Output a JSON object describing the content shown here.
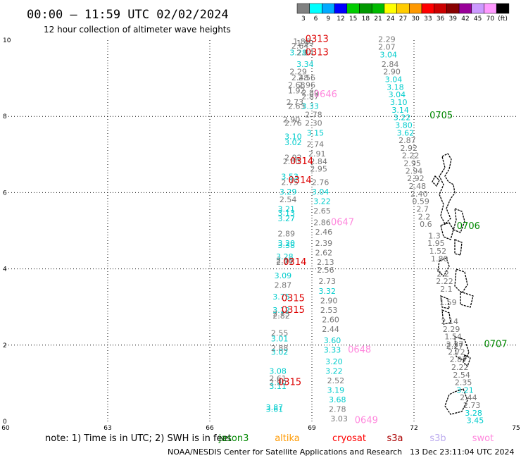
{
  "header": {
    "title": "00:00 – 11:59 UTC 02/02/2024",
    "subtitle": "12 hour collection of altimeter wave heights"
  },
  "colorbar": {
    "labels": [
      "3",
      "6",
      "9",
      "12",
      "15",
      "18",
      "21",
      "24",
      "27",
      "30",
      "33",
      "36",
      "39",
      "42",
      "45",
      "70",
      "(ft)"
    ],
    "colors": [
      "#808080",
      "#00ffff",
      "#00aaff",
      "#0000ff",
      "#00cc00",
      "#009900",
      "#00bb00",
      "#ffff00",
      "#ffcc00",
      "#ff9900",
      "#ff0000",
      "#cc0000",
      "#880000",
      "#990099",
      "#cc99ff",
      "#ff99ff",
      "#000000"
    ]
  },
  "footer": {
    "note": "note:  1) Time is in UTC; 2) SWH is in feet",
    "credit": "NOAA/NESDIS Center for Satellite Applications and Research",
    "timestamp": "13 Dec 23:11:04 UTC 2024",
    "satellites": [
      {
        "name": "jason3",
        "color": "#008800"
      },
      {
        "name": "altika",
        "color": "#ff9900"
      },
      {
        "name": "cryosat",
        "color": "#ff0000"
      },
      {
        "name": "s3a",
        "color": "#aa0000"
      },
      {
        "name": "s3b",
        "color": "#bbaaee"
      },
      {
        "name": "swot",
        "color": "#ff88dd"
      }
    ]
  },
  "chart_data": {
    "type": "scatter",
    "title": "00:00 – 11:59 UTC 02/02/2024",
    "subtitle": "12 hour collection of altimeter wave heights",
    "xlim": [
      60,
      75
    ],
    "ylim": [
      0,
      10
    ],
    "x_ticks": [
      60,
      63,
      66,
      69,
      72,
      75
    ],
    "x_tick_labels": [
      "60",
      "63",
      "66",
      "69",
      "72",
      "75"
    ],
    "y_ticks": [
      0,
      2,
      4,
      6,
      8,
      10
    ],
    "y_tick_labels": [
      "0",
      "2",
      "4",
      "6",
      "8",
      "10"
    ],
    "grid": true,
    "points": [
      {
        "x": 68.7,
        "y": 9.9,
        "v": "1.86",
        "c": "#777777"
      },
      {
        "x": 68.8,
        "y": 9.85,
        "v": "1.99",
        "c": "#777777"
      },
      {
        "x": 68.65,
        "y": 9.78,
        "v": "2.64",
        "c": "#777777"
      },
      {
        "x": 68.6,
        "y": 9.6,
        "v": "3.28",
        "c": "#00cccc"
      },
      {
        "x": 68.8,
        "y": 9.6,
        "v": "2.84",
        "c": "#777777"
      },
      {
        "x": 68.8,
        "y": 9.3,
        "v": "3.34",
        "c": "#00cccc"
      },
      {
        "x": 68.6,
        "y": 9.1,
        "v": "2.29",
        "c": "#777777"
      },
      {
        "x": 68.65,
        "y": 8.95,
        "v": "2.48",
        "c": "#777777"
      },
      {
        "x": 68.85,
        "y": 8.95,
        "v": "2.56",
        "c": "#777777"
      },
      {
        "x": 68.55,
        "y": 8.75,
        "v": "2.68",
        "c": "#777777"
      },
      {
        "x": 68.85,
        "y": 8.75,
        "v": "2.96",
        "c": "#777777"
      },
      {
        "x": 68.55,
        "y": 8.6,
        "v": "1.92",
        "c": "#777777"
      },
      {
        "x": 68.95,
        "y": 8.55,
        "v": "2.89",
        "c": "#777777"
      },
      {
        "x": 68.95,
        "y": 8.45,
        "v": "2.87",
        "c": "#777777"
      },
      {
        "x": 68.5,
        "y": 8.3,
        "v": "2.73",
        "c": "#777777"
      },
      {
        "x": 68.55,
        "y": 8.2,
        "v": "2.63",
        "c": "#777777"
      },
      {
        "x": 68.95,
        "y": 8.2,
        "v": "3.33",
        "c": "#00cccc"
      },
      {
        "x": 69.05,
        "y": 7.98,
        "v": "2.78",
        "c": "#777777"
      },
      {
        "x": 68.4,
        "y": 7.85,
        "v": "2.90",
        "c": "#777777"
      },
      {
        "x": 68.45,
        "y": 7.75,
        "v": "2.76",
        "c": "#777777"
      },
      {
        "x": 69.05,
        "y": 7.75,
        "v": "2.30",
        "c": "#777777"
      },
      {
        "x": 69.1,
        "y": 7.5,
        "v": "3.15",
        "c": "#00cccc"
      },
      {
        "x": 68.45,
        "y": 7.4,
        "v": "3.10",
        "c": "#00cccc"
      },
      {
        "x": 68.45,
        "y": 7.25,
        "v": "3.02",
        "c": "#00cccc"
      },
      {
        "x": 69.1,
        "y": 7.2,
        "v": "2.74",
        "c": "#777777"
      },
      {
        "x": 69.15,
        "y": 6.95,
        "v": "2.91",
        "c": "#777777"
      },
      {
        "x": 68.45,
        "y": 6.85,
        "v": "2.92",
        "c": "#777777"
      },
      {
        "x": 68.4,
        "y": 6.75,
        "v": "2.60",
        "c": "#777777"
      },
      {
        "x": 69.2,
        "y": 6.75,
        "v": "2.84",
        "c": "#777777"
      },
      {
        "x": 69.2,
        "y": 6.55,
        "v": "2.95",
        "c": "#777777"
      },
      {
        "x": 68.35,
        "y": 6.35,
        "v": "3.53",
        "c": "#00cccc"
      },
      {
        "x": 68.35,
        "y": 6.2,
        "v": "2.75",
        "c": "#777777"
      },
      {
        "x": 69.25,
        "y": 6.2,
        "v": "2.76",
        "c": "#777777"
      },
      {
        "x": 69.25,
        "y": 5.95,
        "v": "3.04",
        "c": "#00cccc"
      },
      {
        "x": 68.3,
        "y": 5.95,
        "v": "3.29",
        "c": "#00cccc"
      },
      {
        "x": 68.3,
        "y": 5.75,
        "v": "2.54",
        "c": "#777777"
      },
      {
        "x": 69.3,
        "y": 5.7,
        "v": "3.22",
        "c": "#00cccc"
      },
      {
        "x": 68.25,
        "y": 5.5,
        "v": "3.21",
        "c": "#00cccc"
      },
      {
        "x": 68.25,
        "y": 5.4,
        "v": "3.13",
        "c": "#00cccc"
      },
      {
        "x": 69.3,
        "y": 5.45,
        "v": "2.65",
        "c": "#777777"
      },
      {
        "x": 68.25,
        "y": 5.25,
        "v": "3.27",
        "c": "#00cccc"
      },
      {
        "x": 69.3,
        "y": 5.15,
        "v": "2.86",
        "c": "#777777"
      },
      {
        "x": 68.25,
        "y": 4.85,
        "v": "2.89",
        "c": "#777777"
      },
      {
        "x": 69.35,
        "y": 4.9,
        "v": "2.46",
        "c": "#777777"
      },
      {
        "x": 68.25,
        "y": 4.6,
        "v": "3.20",
        "c": "#00cccc"
      },
      {
        "x": 68.25,
        "y": 4.55,
        "v": "3.38",
        "c": "#00cccc"
      },
      {
        "x": 69.35,
        "y": 4.6,
        "v": "2.39",
        "c": "#777777"
      },
      {
        "x": 69.35,
        "y": 4.35,
        "v": "2.62",
        "c": "#777777"
      },
      {
        "x": 68.2,
        "y": 4.25,
        "v": "3.28",
        "c": "#00cccc"
      },
      {
        "x": 68.2,
        "y": 4.15,
        "v": "2.90",
        "c": "#777777"
      },
      {
        "x": 68.2,
        "y": 4.1,
        "v": "2.71",
        "c": "#777777"
      },
      {
        "x": 69.4,
        "y": 4.1,
        "v": "2.13",
        "c": "#777777"
      },
      {
        "x": 69.4,
        "y": 3.9,
        "v": "2.56",
        "c": "#777777"
      },
      {
        "x": 68.15,
        "y": 3.75,
        "v": "3.09",
        "c": "#00cccc"
      },
      {
        "x": 69.45,
        "y": 3.6,
        "v": "2.73",
        "c": "#777777"
      },
      {
        "x": 68.15,
        "y": 3.5,
        "v": "2.87",
        "c": "#777777"
      },
      {
        "x": 69.45,
        "y": 3.35,
        "v": "3.32",
        "c": "#00cccc"
      },
      {
        "x": 68.1,
        "y": 3.2,
        "v": "3.75",
        "c": "#00cccc"
      },
      {
        "x": 69.5,
        "y": 3.1,
        "v": "2.90",
        "c": "#777777"
      },
      {
        "x": 68.1,
        "y": 2.85,
        "v": "3.12",
        "c": "#00cccc"
      },
      {
        "x": 68.1,
        "y": 2.75,
        "v": "2.75",
        "c": "#777777"
      },
      {
        "x": 68.1,
        "y": 2.7,
        "v": "2.82",
        "c": "#777777"
      },
      {
        "x": 69.5,
        "y": 2.85,
        "v": "2.53",
        "c": "#777777"
      },
      {
        "x": 69.55,
        "y": 2.6,
        "v": "2.60",
        "c": "#777777"
      },
      {
        "x": 69.55,
        "y": 2.35,
        "v": "2.44",
        "c": "#777777"
      },
      {
        "x": 68.05,
        "y": 2.25,
        "v": "2.55",
        "c": "#777777"
      },
      {
        "x": 68.05,
        "y": 2.1,
        "v": "3.01",
        "c": "#00cccc"
      },
      {
        "x": 69.6,
        "y": 2.05,
        "v": "3.60",
        "c": "#00cccc"
      },
      {
        "x": 68.05,
        "y": 1.85,
        "v": "2.88",
        "c": "#777777"
      },
      {
        "x": 68.05,
        "y": 1.75,
        "v": "3.02",
        "c": "#00cccc"
      },
      {
        "x": 69.6,
        "y": 1.8,
        "v": "3.33",
        "c": "#00cccc"
      },
      {
        "x": 69.65,
        "y": 1.5,
        "v": "3.20",
        "c": "#00cccc"
      },
      {
        "x": 68.0,
        "y": 1.25,
        "v": "3.08",
        "c": "#00cccc"
      },
      {
        "x": 69.65,
        "y": 1.25,
        "v": "3.22",
        "c": "#00cccc"
      },
      {
        "x": 68.0,
        "y": 1.05,
        "v": "2.61",
        "c": "#777777"
      },
      {
        "x": 69.7,
        "y": 1.0,
        "v": "2.52",
        "c": "#777777"
      },
      {
        "x": 68.0,
        "y": 0.95,
        "v": "2.90",
        "c": "#777777"
      },
      {
        "x": 68.0,
        "y": 0.85,
        "v": "3.11",
        "c": "#00cccc"
      },
      {
        "x": 69.7,
        "y": 0.75,
        "v": "3.19",
        "c": "#00cccc"
      },
      {
        "x": 69.75,
        "y": 0.5,
        "v": "3.68",
        "c": "#00cccc"
      },
      {
        "x": 69.75,
        "y": 0.25,
        "v": "2.78",
        "c": "#777777"
      },
      {
        "x": 67.9,
        "y": 0.3,
        "v": "3.87",
        "c": "#00cccc"
      },
      {
        "x": 67.9,
        "y": 0.25,
        "v": "3.61",
        "c": "#00cccc"
      },
      {
        "x": 69.8,
        "y": 0.0,
        "v": "3.03",
        "c": "#777777"
      },
      {
        "x": 71.2,
        "y": 9.95,
        "v": "2.29",
        "c": "#777777"
      },
      {
        "x": 71.2,
        "y": 9.75,
        "v": "2.07",
        "c": "#777777"
      },
      {
        "x": 71.25,
        "y": 9.55,
        "v": "3.04",
        "c": "#00cccc"
      },
      {
        "x": 71.3,
        "y": 9.3,
        "v": "2.84",
        "c": "#777777"
      },
      {
        "x": 71.35,
        "y": 9.1,
        "v": "2.90",
        "c": "#777777"
      },
      {
        "x": 71.4,
        "y": 8.9,
        "v": "3.04",
        "c": "#00cccc"
      },
      {
        "x": 71.45,
        "y": 8.7,
        "v": "3.18",
        "c": "#00cccc"
      },
      {
        "x": 71.5,
        "y": 8.5,
        "v": "3.04",
        "c": "#00cccc"
      },
      {
        "x": 71.55,
        "y": 8.3,
        "v": "3.10",
        "c": "#00cccc"
      },
      {
        "x": 71.6,
        "y": 8.1,
        "v": "3.14",
        "c": "#00cccc"
      },
      {
        "x": 71.65,
        "y": 7.9,
        "v": "3.22",
        "c": "#00cccc"
      },
      {
        "x": 71.7,
        "y": 7.7,
        "v": "3.80",
        "c": "#00cccc"
      },
      {
        "x": 71.75,
        "y": 7.5,
        "v": "3.62",
        "c": "#00cccc"
      },
      {
        "x": 71.8,
        "y": 7.3,
        "v": "2.87",
        "c": "#777777"
      },
      {
        "x": 71.85,
        "y": 7.1,
        "v": "2.92",
        "c": "#777777"
      },
      {
        "x": 71.9,
        "y": 6.9,
        "v": "2.22",
        "c": "#777777"
      },
      {
        "x": 71.95,
        "y": 6.7,
        "v": "2.95",
        "c": "#777777"
      },
      {
        "x": 72.0,
        "y": 6.5,
        "v": "2.94",
        "c": "#777777"
      },
      {
        "x": 72.05,
        "y": 6.3,
        "v": "2.92",
        "c": "#777777"
      },
      {
        "x": 72.1,
        "y": 6.1,
        "v": "2.48",
        "c": "#777777"
      },
      {
        "x": 72.15,
        "y": 5.9,
        "v": "2.40",
        "c": "#777777"
      },
      {
        "x": 72.2,
        "y": 5.7,
        "v": "0.59",
        "c": "#777777"
      },
      {
        "x": 72.25,
        "y": 5.5,
        "v": "2.7",
        "c": "#777777"
      },
      {
        "x": 72.3,
        "y": 5.3,
        "v": "2.2",
        "c": "#777777"
      },
      {
        "x": 72.35,
        "y": 5.1,
        "v": "0.6",
        "c": "#777777"
      },
      {
        "x": 72.6,
        "y": 4.8,
        "v": "1.3",
        "c": "#777777"
      },
      {
        "x": 72.65,
        "y": 4.6,
        "v": "1.95",
        "c": "#777777"
      },
      {
        "x": 72.7,
        "y": 4.4,
        "v": "1.52",
        "c": "#777777"
      },
      {
        "x": 72.75,
        "y": 4.2,
        "v": "1.80",
        "c": "#777777"
      },
      {
        "x": 72.85,
        "y": 3.8,
        "v": "2.2",
        "c": "#777777"
      },
      {
        "x": 72.9,
        "y": 3.6,
        "v": "2.22",
        "c": "#777777"
      },
      {
        "x": 72.95,
        "y": 3.4,
        "v": "2.1",
        "c": "#777777"
      },
      {
        "x": 73.0,
        "y": 3.05,
        "v": "1.59",
        "c": "#777777"
      },
      {
        "x": 73.05,
        "y": 2.55,
        "v": "2.14",
        "c": "#777777"
      },
      {
        "x": 73.1,
        "y": 2.35,
        "v": "2.29",
        "c": "#777777"
      },
      {
        "x": 73.15,
        "y": 2.15,
        "v": "1.54",
        "c": "#777777"
      },
      {
        "x": 73.2,
        "y": 1.95,
        "v": "2.37",
        "c": "#777777"
      },
      {
        "x": 73.2,
        "y": 1.9,
        "v": "2.27",
        "c": "#777777"
      },
      {
        "x": 73.25,
        "y": 1.75,
        "v": "2.72",
        "c": "#777777"
      },
      {
        "x": 73.3,
        "y": 1.55,
        "v": "2.87",
        "c": "#777777"
      },
      {
        "x": 73.35,
        "y": 1.35,
        "v": "2.22",
        "c": "#777777"
      },
      {
        "x": 73.4,
        "y": 1.15,
        "v": "2.54",
        "c": "#777777"
      },
      {
        "x": 73.45,
        "y": 0.95,
        "v": "2.35",
        "c": "#777777"
      },
      {
        "x": 73.5,
        "y": 0.75,
        "v": "3.21",
        "c": "#00cccc"
      },
      {
        "x": 73.6,
        "y": 0.55,
        "v": "2.44",
        "c": "#777777"
      },
      {
        "x": 73.7,
        "y": 0.35,
        "v": "2.73",
        "c": "#777777"
      },
      {
        "x": 73.75,
        "y": 0.15,
        "v": "3.28",
        "c": "#00cccc"
      },
      {
        "x": 73.8,
        "y": -0.05,
        "v": "3.45",
        "c": "#00cccc"
      }
    ],
    "pass_labels": [
      {
        "x": 69.15,
        "y": 9.95,
        "t": "0313",
        "c": "#dd0000"
      },
      {
        "x": 69.15,
        "y": 9.6,
        "t": "0313",
        "c": "#dd0000"
      },
      {
        "x": 69.4,
        "y": 8.5,
        "t": "0646",
        "c": "#ff88dd"
      },
      {
        "x": 72.8,
        "y": 7.95,
        "t": "0705",
        "c": "#008800"
      },
      {
        "x": 68.7,
        "y": 6.75,
        "t": "0314",
        "c": "#dd0000"
      },
      {
        "x": 68.65,
        "y": 6.25,
        "t": "0314",
        "c": "#dd0000"
      },
      {
        "x": 69.9,
        "y": 5.15,
        "t": "0647",
        "c": "#ff88dd"
      },
      {
        "x": 73.6,
        "y": 5.05,
        "t": "0706",
        "c": "#008800"
      },
      {
        "x": 68.5,
        "y": 4.1,
        "t": "0314",
        "c": "#dd0000"
      },
      {
        "x": 68.45,
        "y": 3.15,
        "t": "0315",
        "c": "#dd0000"
      },
      {
        "x": 68.45,
        "y": 2.85,
        "t": "0315",
        "c": "#dd0000"
      },
      {
        "x": 70.4,
        "y": 1.8,
        "t": "0648",
        "c": "#ff88dd"
      },
      {
        "x": 74.4,
        "y": 1.95,
        "t": "0707",
        "c": "#008800"
      },
      {
        "x": 68.35,
        "y": 0.95,
        "t": "0315",
        "c": "#dd0000"
      },
      {
        "x": 70.6,
        "y": -0.05,
        "t": "0649",
        "c": "#ff88dd"
      }
    ]
  }
}
